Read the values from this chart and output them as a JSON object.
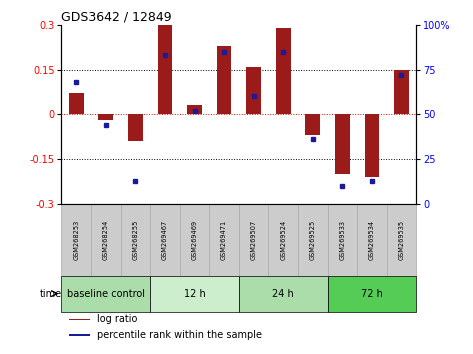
{
  "title": "GDS3642 / 12849",
  "samples": [
    "GSM268253",
    "GSM268254",
    "GSM268255",
    "GSM269467",
    "GSM269469",
    "GSM269471",
    "GSM269507",
    "GSM269524",
    "GSM269525",
    "GSM269533",
    "GSM269534",
    "GSM269535"
  ],
  "log_ratio": [
    0.07,
    -0.02,
    -0.09,
    0.3,
    0.03,
    0.23,
    0.16,
    0.29,
    -0.07,
    -0.2,
    -0.21,
    0.15
  ],
  "percentile_rank": [
    68,
    44,
    13,
    83,
    52,
    85,
    60,
    85,
    36,
    10,
    13,
    72
  ],
  "bar_color": "#9b1a1a",
  "dot_color": "#1a1a9b",
  "ylim_left": [
    -0.3,
    0.3
  ],
  "ylim_right": [
    0,
    100
  ],
  "yticks_left": [
    -0.3,
    -0.15,
    0,
    0.15,
    0.3
  ],
  "yticks_right": [
    0,
    25,
    50,
    75,
    100
  ],
  "groups": [
    {
      "label": "baseline control",
      "start": 0,
      "end": 3,
      "color": "#aaddaa"
    },
    {
      "label": "12 h",
      "start": 3,
      "end": 6,
      "color": "#cceecc"
    },
    {
      "label": "24 h",
      "start": 6,
      "end": 9,
      "color": "#aaddaa"
    },
    {
      "label": "72 h",
      "start": 9,
      "end": 12,
      "color": "#55cc55"
    }
  ],
  "legend_bar_label": "log ratio",
  "legend_dot_label": "percentile rank within the sample",
  "time_label": "time",
  "background_color": "#ffffff",
  "sample_box_color": "#cccccc",
  "sample_box_edge_color": "#aaaaaa"
}
